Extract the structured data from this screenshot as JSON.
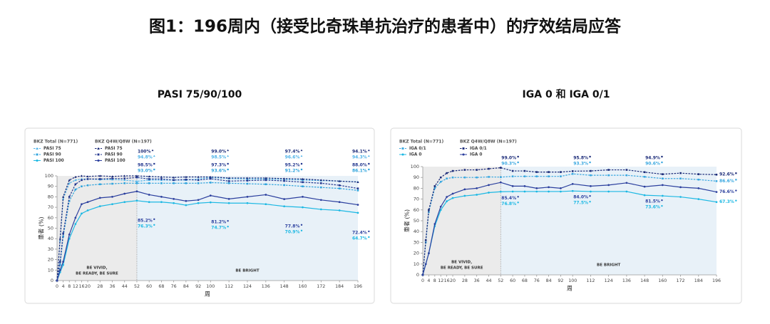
{
  "title": "图1：196周内（接受比奇珠单抗治疗的患者中）的疗效结局应答",
  "chart_data": [
    {
      "type": "line",
      "title": "PASI 75/90/100",
      "x_label": "周",
      "y_label": "患者 (%)",
      "x": [
        0,
        2,
        4,
        8,
        12,
        16,
        20,
        28,
        36,
        44,
        52,
        60,
        68,
        76,
        84,
        92,
        100,
        112,
        124,
        136,
        148,
        160,
        172,
        184,
        196
      ],
      "xlim": [
        0,
        196
      ],
      "xticks": [
        0,
        4,
        8,
        12,
        16,
        20,
        28,
        36,
        44,
        52,
        60,
        68,
        76,
        84,
        92,
        100,
        112,
        124,
        136,
        148,
        160,
        172,
        184,
        196
      ],
      "ylim": [
        0,
        100
      ],
      "yticks": [
        0,
        10,
        20,
        30,
        40,
        50,
        60,
        70,
        80,
        90,
        100
      ],
      "regions": [
        {
          "start": 0,
          "end": 52,
          "label": [
            "BE VIVID,",
            "BE READY, BE SURE"
          ],
          "color": "#ebebeb"
        },
        {
          "start": 52,
          "end": 196,
          "label": [
            "BE BRIGHT"
          ],
          "color": "#e8f1f8"
        }
      ],
      "series_groups": [
        {
          "name": "BKZ Total (N=771)",
          "series": [
            {
              "name": "PASI 75",
              "color": "#4fb3e8",
              "style": "dashed",
              "marker": "triangle",
              "values": [
                0,
                38,
                78,
                93,
                96,
                97,
                97,
                96.5,
                96.5,
                96,
                94.8,
                96,
                96,
                96,
                96,
                97,
                98.5,
                97.5,
                97,
                97,
                96.6,
                96,
                95.5,
                95,
                94.3
              ],
              "value_labels": [
                null,
                null,
                null,
                null,
                null,
                null,
                null,
                null,
                null,
                null,
                "94.8%",
                null,
                null,
                null,
                null,
                null,
                "98.5%",
                null,
                null,
                null,
                "96.6%",
                null,
                null,
                null,
                "94.3%"
              ]
            },
            {
              "name": "PASI 90",
              "color": "#2ea3dc",
              "style": "dashed",
              "marker": "square",
              "values": [
                0,
                15,
                42,
                76,
                87,
                90,
                91,
                92,
                92.5,
                93,
                93.0,
                93,
                93,
                93,
                93,
                93,
                93.6,
                93,
                92.5,
                92,
                91.2,
                90,
                89,
                88,
                86.1
              ],
              "value_labels": [
                null,
                null,
                null,
                null,
                null,
                null,
                null,
                null,
                null,
                null,
                "93.0%",
                null,
                null,
                null,
                null,
                null,
                "93.6%",
                null,
                null,
                null,
                "91.2%",
                null,
                null,
                null,
                "86.1%"
              ]
            },
            {
              "name": "PASI 100",
              "color": "#1cb8e3",
              "style": "solid",
              "marker": "circle",
              "values": [
                0,
                8,
                15,
                40,
                54,
                64,
                67,
                71,
                73,
                75,
                76.3,
                75,
                75,
                74,
                72,
                74,
                74.7,
                74,
                74,
                73,
                70.9,
                70,
                68,
                67,
                64.7
              ],
              "value_labels": [
                null,
                null,
                null,
                null,
                null,
                null,
                null,
                null,
                null,
                null,
                "76.3%",
                null,
                null,
                null,
                null,
                null,
                "74.7%",
                null,
                null,
                null,
                "70.9%",
                null,
                null,
                null,
                "64.7%"
              ]
            }
          ]
        },
        {
          "name": "BKZ Q4W/Q8W (N=197)",
          "series": [
            {
              "name": "PASI 75",
              "color": "#1a2a78",
              "style": "dashed",
              "marker": "triangle",
              "values": [
                0,
                40,
                80,
                96,
                99,
                100,
                99.5,
                100,
                99.5,
                100,
                100,
                99.5,
                99,
                98.5,
                99,
                99,
                99.0,
                98,
                98,
                98,
                97.4,
                97,
                96,
                95,
                94.1
              ],
              "value_labels": [
                null,
                null,
                null,
                null,
                null,
                null,
                null,
                null,
                null,
                null,
                "100%",
                null,
                null,
                null,
                null,
                null,
                "99.0%",
                null,
                null,
                null,
                "97.4%",
                null,
                null,
                null,
                "94.1%"
              ]
            },
            {
              "name": "PASI 90",
              "color": "#23378f",
              "style": "dashed",
              "marker": "square",
              "values": [
                0,
                18,
                45,
                80,
                92,
                96,
                97,
                97,
                97.5,
                97.5,
                98.5,
                97,
                97,
                96,
                96.5,
                96,
                97.3,
                95,
                95.5,
                96,
                95.2,
                94,
                93,
                91,
                88.0
              ],
              "value_labels": [
                null,
                null,
                null,
                null,
                null,
                null,
                null,
                null,
                null,
                null,
                "98.5%",
                null,
                null,
                null,
                null,
                null,
                "97.3%",
                null,
                null,
                null,
                "95.2%",
                null,
                null,
                null,
                "88.0%"
              ]
            },
            {
              "name": "PASI 100",
              "color": "#2b3f9e",
              "style": "solid",
              "marker": "circle",
              "values": [
                0,
                10,
                18,
                44,
                60,
                73,
                75,
                79,
                80,
                83,
                85.2,
                82,
                80,
                78,
                76,
                77,
                81.2,
                78,
                80,
                82,
                77.8,
                80,
                77,
                75,
                72.4
              ],
              "value_labels": [
                null,
                null,
                null,
                null,
                null,
                null,
                null,
                null,
                null,
                null,
                "85.2%",
                null,
                null,
                null,
                null,
                null,
                "81.2%",
                null,
                null,
                null,
                "77.8%",
                null,
                null,
                null,
                "72.4%"
              ]
            }
          ]
        }
      ]
    },
    {
      "type": "line",
      "title": "IGA 0 和 IGA 0/1",
      "x_label": "周",
      "y_label": "患者 (%)",
      "x": [
        0,
        2,
        4,
        8,
        12,
        16,
        20,
        28,
        36,
        44,
        52,
        60,
        68,
        76,
        84,
        92,
        100,
        112,
        124,
        136,
        148,
        160,
        172,
        184,
        196
      ],
      "xlim": [
        0,
        196
      ],
      "xticks": [
        0,
        4,
        8,
        12,
        16,
        20,
        28,
        36,
        44,
        52,
        60,
        68,
        76,
        84,
        92,
        100,
        112,
        124,
        136,
        148,
        160,
        172,
        184,
        196
      ],
      "ylim": [
        0,
        100
      ],
      "yticks": [
        0,
        10,
        20,
        30,
        40,
        50,
        60,
        70,
        80,
        90,
        100
      ],
      "regions": [
        {
          "start": 0,
          "end": 52,
          "label": [
            "BE VIVID,",
            "BE READY, BE SURE"
          ],
          "color": "#ebebeb"
        },
        {
          "start": 52,
          "end": 196,
          "label": [
            "BE BRIGHT"
          ],
          "color": "#e8f1f8"
        }
      ],
      "series_groups": [
        {
          "name": "BKZ Total (N=771)",
          "series": [
            {
              "name": "IGA 0/1",
              "color": "#3aa8e0",
              "style": "dashed",
              "marker": "square",
              "values": [
                0,
                30,
                58,
                80,
                86,
                89,
                90,
                90,
                90,
                90.5,
                90.3,
                91,
                91,
                91,
                91,
                91,
                93.3,
                92,
                92,
                92,
                90.6,
                89,
                89,
                88,
                86.6
              ],
              "value_labels": [
                null,
                null,
                null,
                null,
                null,
                null,
                null,
                null,
                null,
                null,
                "90.3%",
                null,
                null,
                null,
                null,
                null,
                "93.3%",
                null,
                null,
                null,
                "90.6%",
                null,
                null,
                null,
                "86.6%"
              ]
            },
            {
              "name": "IGA 0",
              "color": "#1cb8e3",
              "style": "solid",
              "marker": "circle",
              "values": [
                0,
                10,
                20,
                45,
                60,
                68,
                71,
                73,
                74,
                76,
                76.8,
                77,
                77,
                77,
                77,
                77,
                77.5,
                77,
                77,
                77,
                73.6,
                73,
                72,
                70,
                67.3
              ],
              "value_labels": [
                null,
                null,
                null,
                null,
                null,
                null,
                null,
                null,
                null,
                null,
                "76.8%",
                null,
                null,
                null,
                null,
                null,
                "77.5%",
                null,
                null,
                null,
                "73.6%",
                null,
                null,
                null,
                "67.3%"
              ]
            }
          ]
        },
        {
          "name": "BKZ Q4W/Q8W (N=197)",
          "series": [
            {
              "name": "IGA 0/1",
              "color": "#1a2a78",
              "style": "dashed",
              "marker": "square",
              "values": [
                0,
                32,
                60,
                82,
                90,
                94,
                96,
                97,
                97,
                98,
                99.0,
                96,
                96,
                95,
                95,
                95,
                95.8,
                96,
                97,
                97,
                94.9,
                93,
                94,
                93,
                92.6
              ],
              "value_labels": [
                null,
                null,
                null,
                null,
                null,
                null,
                null,
                null,
                null,
                null,
                "99.0%",
                null,
                null,
                null,
                null,
                null,
                "95.8%",
                null,
                null,
                null,
                "94.9%",
                null,
                null,
                null,
                "92.6%"
              ]
            },
            {
              "name": "IGA 0",
              "color": "#2b3f9e",
              "style": "solid",
              "marker": "circle",
              "values": [
                0,
                10,
                20,
                47,
                63,
                72,
                75,
                79,
                80,
                83,
                85.4,
                82,
                82,
                80,
                81,
                80,
                84.0,
                82,
                83,
                85,
                81.5,
                83,
                81,
                80,
                76.6
              ],
              "value_labels": [
                null,
                null,
                null,
                null,
                null,
                null,
                null,
                null,
                null,
                null,
                "85.4%",
                null,
                null,
                null,
                null,
                null,
                "84.0%",
                null,
                null,
                null,
                "81.5%",
                null,
                null,
                null,
                "76.6%"
              ]
            }
          ]
        }
      ]
    }
  ]
}
